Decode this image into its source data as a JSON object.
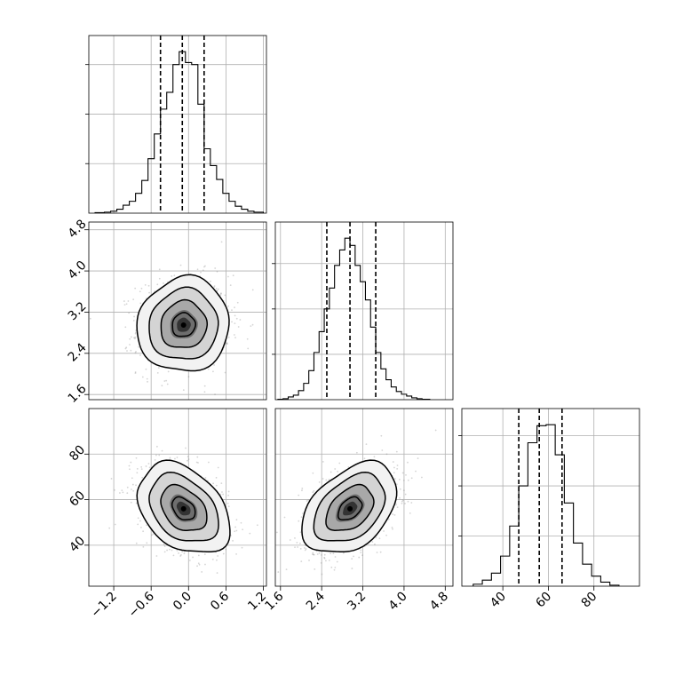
{
  "chart_data": {
    "type": "corner",
    "parameters": [
      {
        "id": "p0",
        "range": [
          -1.6,
          1.25
        ],
        "ticks": [
          -1.2,
          -0.6,
          0.0,
          0.6,
          1.2
        ],
        "tick_labels": [
          "−1.2",
          "−0.6",
          "0.0",
          "0.6",
          "1.2"
        ],
        "quantiles": [
          -0.45,
          -0.1,
          0.25
        ]
      },
      {
        "id": "p1",
        "range": [
          1.5,
          4.95
        ],
        "ticks": [
          1.6,
          2.4,
          3.2,
          4.0,
          4.8
        ],
        "tick_labels": [
          "1.6",
          "2.4",
          "3.2",
          "4.0",
          "4.8"
        ],
        "quantiles": [
          2.5,
          2.95,
          3.45
        ]
      },
      {
        "id": "p2",
        "range": [
          22,
          100
        ],
        "ticks": [
          40,
          60,
          80
        ],
        "tick_labels": [
          "40",
          "60",
          "80"
        ],
        "quantiles": [
          47,
          56,
          66
        ]
      }
    ],
    "histograms": [
      {
        "param": "p0",
        "edges": [
          -1.5,
          -1.35,
          -1.25,
          -1.15,
          -1.05,
          -0.95,
          -0.85,
          -0.75,
          -0.65,
          -0.55,
          -0.45,
          -0.35,
          -0.25,
          -0.15,
          -0.05,
          0.05,
          0.15,
          0.25,
          0.35,
          0.45,
          0.55,
          0.65,
          0.75,
          0.85,
          0.95,
          1.05,
          1.2
        ],
        "counts": [
          0.5,
          1,
          2,
          4,
          8,
          12,
          20,
          33,
          55,
          80,
          105,
          122,
          150,
          163,
          152,
          150,
          110,
          65,
          48,
          34,
          20,
          12,
          7,
          4,
          2,
          1
        ]
      },
      {
        "param": "p1",
        "edges": [
          1.55,
          1.65,
          1.75,
          1.85,
          1.95,
          2.05,
          2.15,
          2.25,
          2.35,
          2.45,
          2.55,
          2.65,
          2.75,
          2.85,
          2.95,
          3.05,
          3.15,
          3.25,
          3.35,
          3.45,
          3.55,
          3.65,
          3.75,
          3.85,
          3.95,
          4.05,
          4.15,
          4.25,
          4.35,
          4.5
        ],
        "counts": [
          0.5,
          1,
          3,
          5,
          10,
          18,
          32,
          52,
          75,
          100,
          123,
          148,
          165,
          178,
          170,
          148,
          130,
          110,
          80,
          52,
          34,
          22,
          14,
          9,
          6,
          4,
          2,
          1,
          0.5
        ]
      },
      {
        "param": "p2",
        "edges": [
          27,
          31,
          35,
          39,
          43,
          47,
          51,
          55,
          59,
          63,
          67,
          71,
          75,
          79,
          83,
          87,
          91
        ],
        "counts": [
          2,
          6,
          13,
          30,
          60,
          100,
          143,
          160,
          161,
          131,
          83,
          43,
          22,
          10,
          4,
          1
        ]
      }
    ],
    "scatter_panels": [
      {
        "x": "p0",
        "y": "p1",
        "center": [
          -0.08,
          2.95
        ],
        "std": [
          0.37,
          0.46
        ],
        "corr": 0.05,
        "levels": [
          0.5,
          1.0,
          1.5,
          2.0
        ]
      },
      {
        "x": "p0",
        "y": "p2",
        "center": [
          -0.08,
          56
        ],
        "std": [
          0.37,
          10
        ],
        "corr": -0.35,
        "levels": [
          0.5,
          1.0,
          1.5,
          2.0
        ]
      },
      {
        "x": "p1",
        "y": "p2",
        "center": [
          2.95,
          56
        ],
        "std": [
          0.46,
          10
        ],
        "corr": 0.4,
        "levels": [
          0.5,
          1.0,
          1.5,
          2.0
        ]
      }
    ]
  }
}
